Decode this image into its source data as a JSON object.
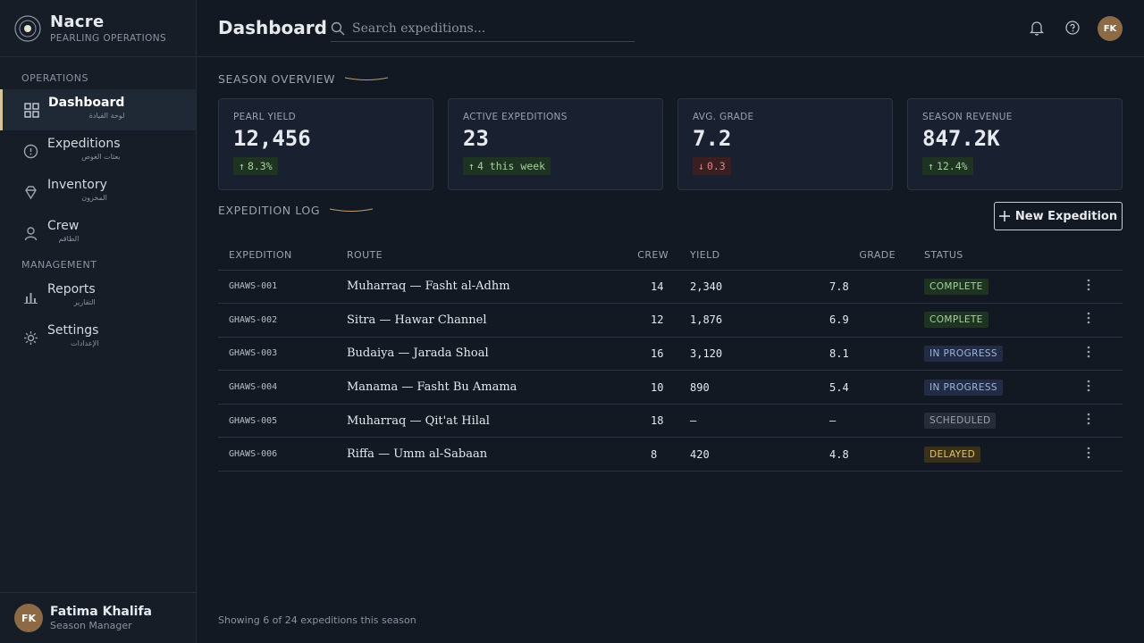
{
  "sidebar": {
    "brand": {
      "name": "Nacre",
      "tagline": "PEARLING OPERATIONS"
    },
    "sections": [
      {
        "title": "OPERATIONS",
        "items": [
          {
            "label": "Dashboard",
            "sublabel": "لوحة القيادة"
          },
          {
            "label": "Expeditions",
            "sublabel": "بعثات الغوص"
          },
          {
            "label": "Inventory",
            "sublabel": "المخزون"
          },
          {
            "label": "Crew",
            "sublabel": "الطاقم"
          }
        ]
      },
      {
        "title": "MANAGEMENT",
        "items": [
          {
            "label": "Reports",
            "sublabel": "التقارير"
          },
          {
            "label": "Settings",
            "sublabel": "الإعدادات"
          }
        ]
      }
    ],
    "user": {
      "initials": "FK",
      "name": "Fatima Khalifa",
      "role": "Season Manager"
    }
  },
  "header": {
    "title": "Dashboard",
    "search_placeholder": "Search expeditions...",
    "avatar": "FK"
  },
  "overview": {
    "title": "SEASON OVERVIEW",
    "cards": [
      {
        "label": "PEARL YIELD",
        "value": "12,456",
        "delta": "8.3%"
      },
      {
        "label": "ACTIVE EXPEDITIONS",
        "value": "23",
        "delta": "4 this week"
      },
      {
        "label": "AVG. GRADE",
        "value": "7.2",
        "delta": "0.3"
      },
      {
        "label": "SEASON REVENUE",
        "value": "847.2K",
        "delta": "12.4%"
      }
    ]
  },
  "log": {
    "title": "EXPEDITION LOG",
    "button": "New Expedition",
    "columns": [
      "EXPEDITION",
      "ROUTE",
      "CREW",
      "YIELD",
      "GRADE",
      "STATUS"
    ],
    "rows": [
      [
        "GHAWS-001",
        "Muharraq — Fasht al-Adhm",
        "14",
        "2,340",
        "7.8",
        "COMPLETE"
      ],
      [
        "GHAWS-002",
        "Sitra — Hawar Channel",
        "12",
        "1,876",
        "6.9",
        "COMPLETE"
      ],
      [
        "GHAWS-003",
        "Budaiya — Jarada Shoal",
        "16",
        "3,120",
        "8.1",
        "IN PROGRESS"
      ],
      [
        "GHAWS-004",
        "Manama — Fasht Bu Amama",
        "10",
        "890",
        "5.4",
        "IN PROGRESS"
      ],
      [
        "GHAWS-005",
        "Muharraq — Qit'at Hilal",
        "18",
        "—",
        "—",
        "SCHEDULED"
      ],
      [
        "GHAWS-006",
        "Riffa — Umm al-Sabaan",
        "8",
        "420",
        "4.8",
        "DELAYED"
      ]
    ]
  },
  "footer": "Showing 6 of 24 expeditions this season"
}
